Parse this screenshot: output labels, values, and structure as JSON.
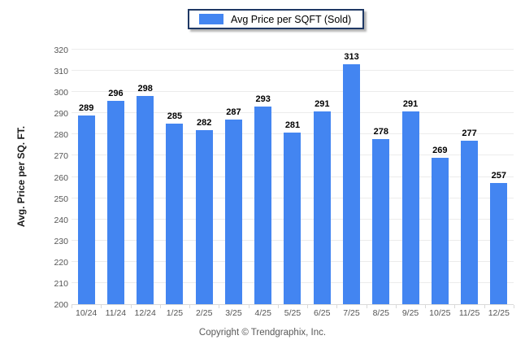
{
  "legend": {
    "label": "Avg Price per SQFT (Sold)"
  },
  "y_axis": {
    "title": "Avg. Price per SQ. FT."
  },
  "footer": {
    "text": "Copyright © Trendgraphix, Inc."
  },
  "colors": {
    "bar": "#4385f1",
    "legend_border": "#1f3864",
    "gridline": "#ececec",
    "tick_text": "#545454",
    "value_text": "#000000"
  },
  "chart_data": {
    "type": "bar",
    "title": "Avg Price per SQFT (Sold)",
    "categories": [
      "10/24",
      "11/24",
      "12/24",
      "1/25",
      "2/25",
      "3/25",
      "4/25",
      "5/25",
      "6/25",
      "7/25",
      "8/25",
      "9/25",
      "10/25",
      "11/25",
      "12/25"
    ],
    "values": [
      289,
      296,
      298,
      285,
      282,
      287,
      293,
      281,
      291,
      313,
      278,
      291,
      269,
      277,
      257
    ],
    "xlabel": "",
    "ylabel": "Avg. Price per SQ. FT.",
    "ylim": [
      200,
      320
    ],
    "ytick_step": 10,
    "grid": "horizontal",
    "legend_position": "top-center",
    "value_labels": "above-bars"
  }
}
